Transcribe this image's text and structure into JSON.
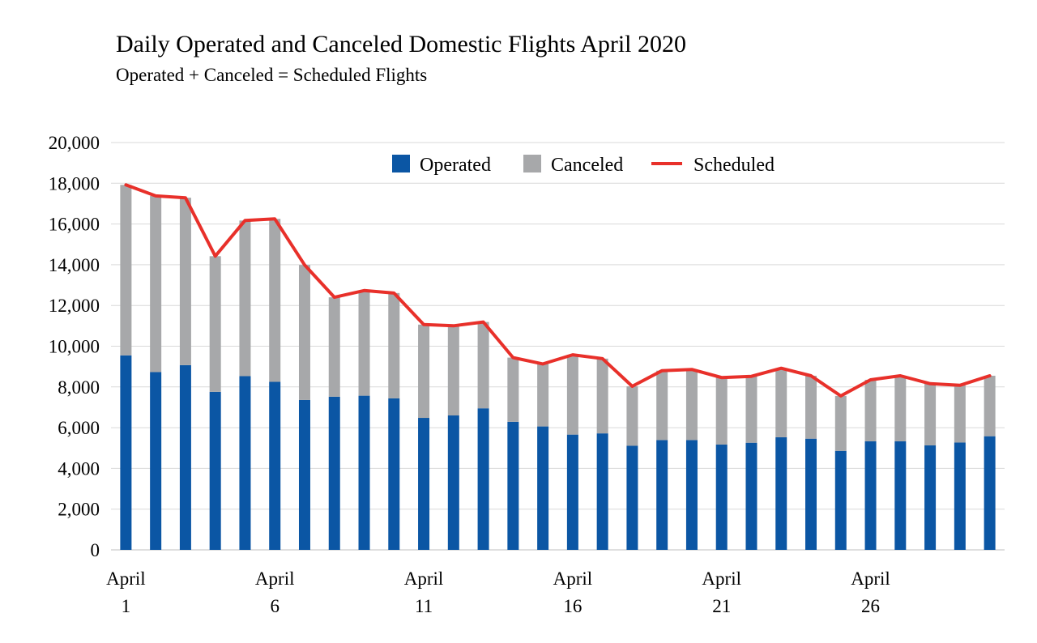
{
  "title": "Daily Operated and Canceled Domestic Flights April 2020",
  "subtitle": "Operated + Canceled = Scheduled Flights",
  "colors": {
    "operated": "#0b56a4",
    "canceled": "#a7a8aa",
    "scheduled": "#e8302a",
    "grid": "#d9d9d9"
  },
  "legend": {
    "operated": "Operated",
    "canceled": "Canceled",
    "scheduled": "Scheduled"
  },
  "chart_data": {
    "type": "bar",
    "stacked": true,
    "title": "Daily Operated and Canceled Domestic Flights April 2020",
    "subtitle": "Operated + Canceled = Scheduled Flights",
    "xlabel": "",
    "ylabel": "",
    "ylim": [
      0,
      20000
    ],
    "yticks": [
      0,
      2000,
      4000,
      6000,
      8000,
      10000,
      12000,
      14000,
      16000,
      18000,
      20000
    ],
    "ytick_labels": [
      "0",
      "2,000",
      "4,000",
      "6,000",
      "8,000",
      "10,000",
      "12,000",
      "14,000",
      "16,000",
      "18,000",
      "20,000"
    ],
    "grid": true,
    "legend_position": "top-center",
    "x_tick_labels": [
      {
        "day": 1,
        "line1": "April",
        "line2": "1"
      },
      {
        "day": 6,
        "line1": "April",
        "line2": "6"
      },
      {
        "day": 11,
        "line1": "April",
        "line2": "11"
      },
      {
        "day": 16,
        "line1": "April",
        "line2": "16"
      },
      {
        "day": 21,
        "line1": "April",
        "line2": "21"
      },
      {
        "day": 26,
        "line1": "April",
        "line2": "26"
      }
    ],
    "days": [
      1,
      2,
      3,
      4,
      5,
      6,
      7,
      8,
      9,
      10,
      11,
      12,
      13,
      14,
      15,
      16,
      17,
      18,
      19,
      20,
      21,
      22,
      23,
      24,
      25,
      26,
      27,
      28,
      29,
      30
    ],
    "series": [
      {
        "name": "Operated",
        "type": "bar",
        "values": [
          9550,
          8730,
          9070,
          7760,
          8530,
          8250,
          7360,
          7520,
          7570,
          7440,
          6480,
          6600,
          6950,
          6290,
          6060,
          5660,
          5720,
          5110,
          5390,
          5390,
          5170,
          5260,
          5530,
          5460,
          4860,
          5330,
          5330,
          5130,
          5270,
          5580
        ]
      },
      {
        "name": "Canceled",
        "type": "bar",
        "values": [
          8370,
          8650,
          8220,
          6660,
          7640,
          8000,
          6630,
          4880,
          5160,
          5170,
          4580,
          4400,
          4240,
          3150,
          3070,
          3920,
          3670,
          2920,
          3410,
          3470,
          3290,
          3260,
          3390,
          3090,
          2700,
          3020,
          3220,
          3030,
          2810,
          2970
        ]
      },
      {
        "name": "Scheduled",
        "type": "line",
        "values": [
          17920,
          17380,
          17290,
          14420,
          16170,
          16250,
          13990,
          12400,
          12730,
          12610,
          11060,
          11000,
          11190,
          9440,
          9130,
          9580,
          9390,
          8030,
          8800,
          8860,
          8460,
          8520,
          8920,
          8550,
          7560,
          8350,
          8550,
          8160,
          8080,
          8550
        ]
      }
    ]
  }
}
